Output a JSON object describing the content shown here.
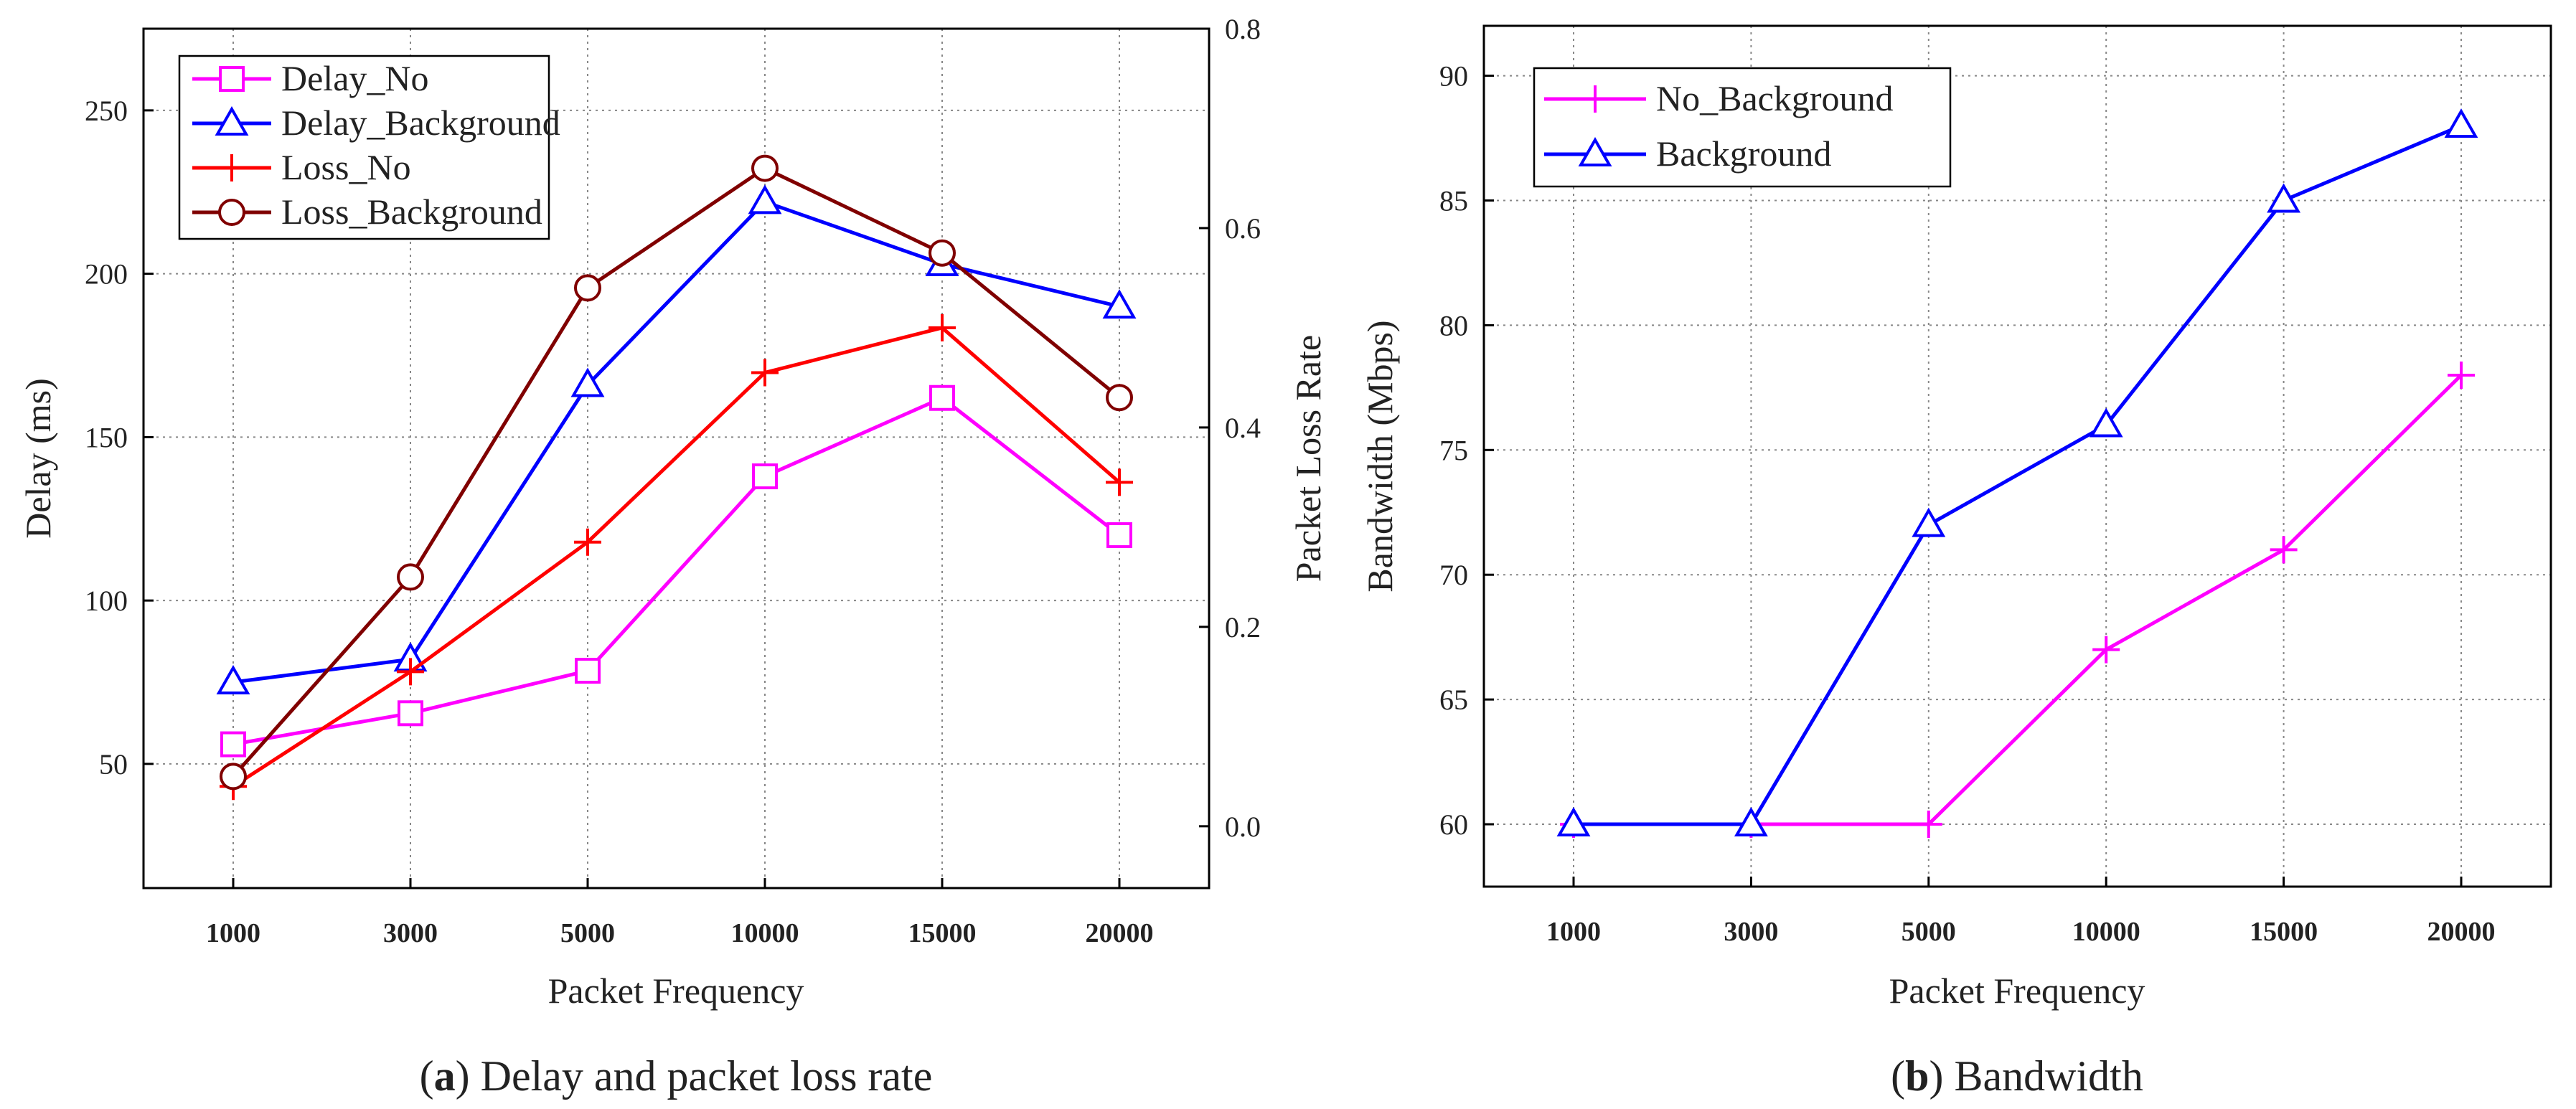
{
  "colors": {
    "magenta": "#ff00ff",
    "blue": "#0000ff",
    "red": "#ff0000",
    "darkred": "#800000",
    "grid": "#888888",
    "axis": "#000000"
  },
  "chart_data": [
    {
      "type": "line",
      "id": "a",
      "caption_letter": "a",
      "caption_text": " Delay and packet loss rate",
      "xlabel": "Packet Frequency",
      "ylabel": "Delay (ms)",
      "ylabel_right": "Packet Loss Rate",
      "categories": [
        "1000",
        "3000",
        "5000",
        "10000",
        "15000",
        "20000"
      ],
      "ylim": [
        12,
        275
      ],
      "yticks": [
        50,
        100,
        150,
        200,
        250
      ],
      "ytick_labels": [
        "50",
        "100",
        "150",
        "200",
        "250"
      ],
      "ylim_right": [
        -0.062,
        0.8
      ],
      "yticks_right": [
        0.0,
        0.2,
        0.4,
        0.6,
        0.8
      ],
      "ytick_labels_right": [
        "0.0",
        "0.2",
        "0.4",
        "0.6",
        "0.8"
      ],
      "grid": true,
      "legend_position": "top-left",
      "series": [
        {
          "name": "Delay_No",
          "axis": "left",
          "color": "#ff00ff",
          "marker": "square",
          "values": [
            56,
            65.5,
            78.5,
            138,
            162,
            120
          ]
        },
        {
          "name": "Delay_Background",
          "axis": "left",
          "color": "#0000ff",
          "marker": "triangle",
          "values": [
            75,
            82,
            166,
            222,
            203,
            190
          ]
        },
        {
          "name": "Loss_No",
          "axis": "right",
          "color": "#ff0000",
          "marker": "plus",
          "values": [
            0.04,
            0.155,
            0.285,
            0.455,
            0.5,
            0.345
          ]
        },
        {
          "name": "Loss_Background",
          "axis": "right",
          "color": "#800000",
          "marker": "circle",
          "values": [
            0.05,
            0.25,
            0.54,
            0.66,
            0.575,
            0.43
          ]
        }
      ]
    },
    {
      "type": "line",
      "id": "b",
      "caption_letter": "b",
      "caption_text": " Bandwidth",
      "xlabel": "Packet Frequency",
      "ylabel": "Bandwidth (Mbps)",
      "categories": [
        "1000",
        "3000",
        "5000",
        "10000",
        "15000",
        "20000"
      ],
      "ylim": [
        57.5,
        92
      ],
      "yticks": [
        60,
        65,
        70,
        75,
        80,
        85,
        90
      ],
      "ytick_labels": [
        "60",
        "65",
        "70",
        "75",
        "80",
        "85",
        "90"
      ],
      "grid": true,
      "legend_position": "top-left",
      "series": [
        {
          "name": "No_Background",
          "axis": "left",
          "color": "#ff00ff",
          "marker": "plus",
          "values": [
            60,
            60,
            60,
            67,
            71,
            78
          ]
        },
        {
          "name": "Background",
          "axis": "left",
          "color": "#0000ff",
          "marker": "triangle",
          "values": [
            60,
            60,
            72,
            76,
            85,
            88
          ]
        }
      ]
    }
  ]
}
